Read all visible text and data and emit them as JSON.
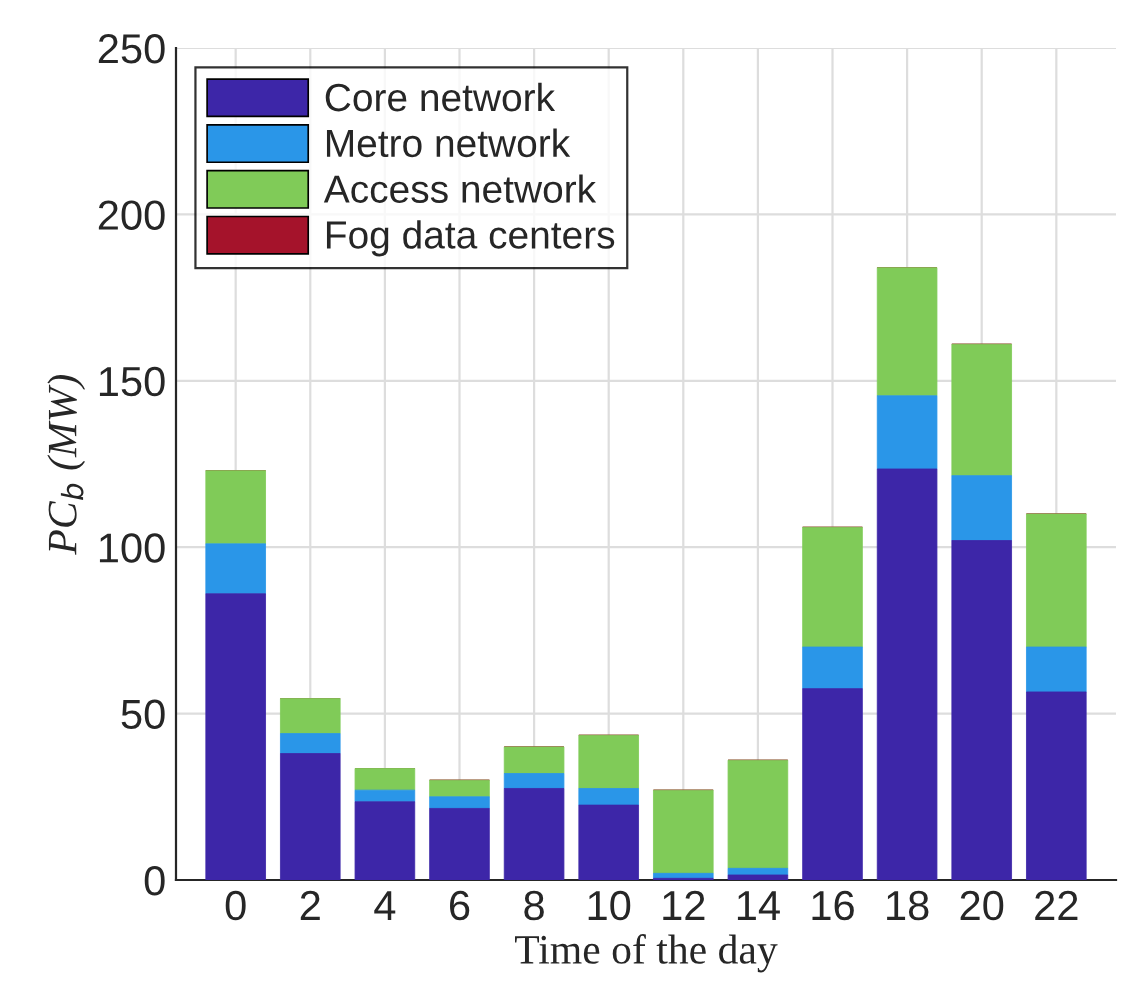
{
  "chart_data": {
    "type": "bar",
    "stacked": true,
    "categories": [
      "0",
      "2",
      "4",
      "6",
      "8",
      "10",
      "12",
      "14",
      "16",
      "18",
      "20",
      "22"
    ],
    "xlabel": "Time of the day",
    "ylabel": "PC$_{b}$ (MW)",
    "ylim": [
      0,
      250
    ],
    "yticks": [
      0,
      50,
      100,
      150,
      200,
      250
    ],
    "grid": true,
    "legend": "top left",
    "series": [
      {
        "name": "Core network",
        "color": "#3d26a8",
        "values": [
          86,
          38,
          23.5,
          21.5,
          27.5,
          22.5,
          0.5,
          1.5,
          57.5,
          123.5,
          102,
          56.5
        ]
      },
      {
        "name": "Metro network",
        "color": "#2a96e8",
        "values": [
          15,
          6,
          3.5,
          3.5,
          4.5,
          5,
          1.5,
          2,
          12.5,
          22,
          19.5,
          13.5
        ]
      },
      {
        "name": "Access network",
        "color": "#80cb58",
        "values": [
          22,
          10.5,
          6.5,
          5,
          8,
          16,
          25,
          32.5,
          36,
          38.5,
          39.5,
          40
        ]
      },
      {
        "name": "Fog data centers",
        "color": "#a5132b",
        "values": [
          0,
          0,
          0,
          0,
          0,
          0,
          0,
          0,
          0,
          0,
          0,
          0
        ]
      }
    ]
  }
}
